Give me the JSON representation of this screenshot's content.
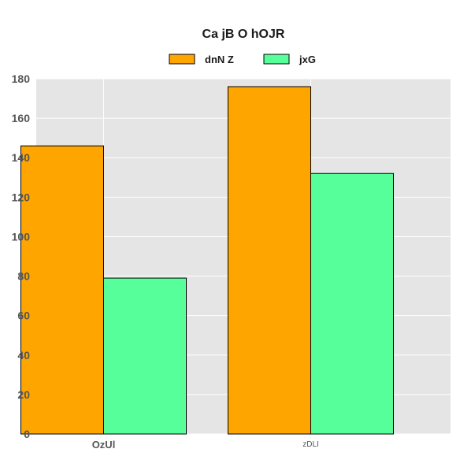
{
  "chart_data": {
    "type": "bar",
    "title": "Ca jB O hOJR",
    "xlabel": "",
    "ylabel": "",
    "categories": [
      "OzUl",
      "zDLI"
    ],
    "series": [
      {
        "name": "dnN Z",
        "values": [
          146,
          176
        ],
        "color": "#ffa500"
      },
      {
        "name": "jxG",
        "values": [
          79,
          132
        ],
        "color": "#57ff9a"
      }
    ],
    "ylim": [
      0,
      180
    ],
    "yticks": [
      0,
      20,
      40,
      60,
      80,
      100,
      120,
      140,
      160,
      180
    ],
    "grid": true,
    "legend_position": "top-center",
    "plot_background": "#e5e5e5",
    "grid_color": "#ffffff"
  }
}
